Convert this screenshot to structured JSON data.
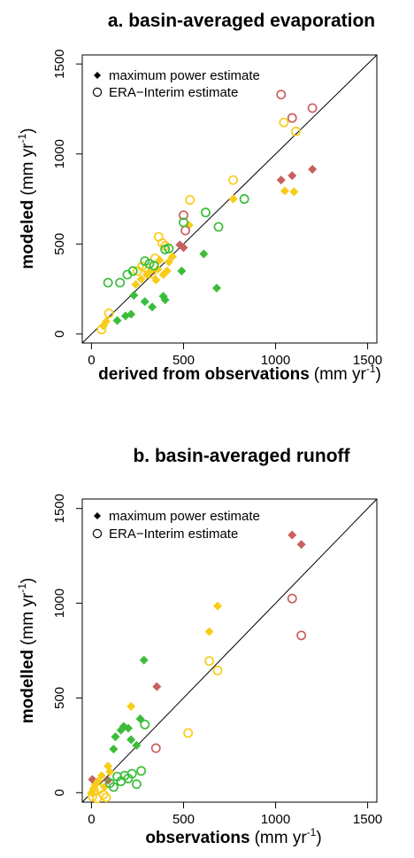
{
  "colors": {
    "red": "#c8615e",
    "yellow": "#f7cd1a",
    "green": "#3bbd3a",
    "black": "#000000"
  },
  "chart_data": [
    {
      "type": "scatter",
      "title": "a. basin-averaged evaporation",
      "xlabel_bold": "derived from observations",
      "xlabel_unit": "(mm yr",
      "xlabel_sup": "-1",
      "xlabel_close": ")",
      "ylabel_bold": "modeled",
      "ylabel_unit": "(mm yr",
      "ylabel_sup": "-1",
      "ylabel_close": ")",
      "xlim": [
        -50,
        1550
      ],
      "ylim": [
        -50,
        1550
      ],
      "xticks": [
        0,
        500,
        1000,
        1500
      ],
      "yticks": [
        0,
        500,
        1000,
        1500
      ],
      "one_to_one_line": true,
      "legend": {
        "position": "top-left",
        "entries": [
          {
            "symbol": "filled-diamond",
            "label": "maximum power estimate"
          },
          {
            "symbol": "open-circle",
            "label": "ERA−Interim estimate"
          }
        ]
      },
      "series": [
        {
          "marker": "diamond",
          "color": "red",
          "x": [
            480,
            500,
            1030,
            1090,
            1200
          ],
          "y": [
            495,
            480,
            855,
            880,
            915
          ]
        },
        {
          "marker": "diamond",
          "color": "yellow",
          "x": [
            65,
            80,
            240,
            270,
            300,
            320,
            350,
            360,
            370,
            390,
            410,
            420,
            440,
            530,
            770,
            1050,
            1100
          ],
          "y": [
            45,
            70,
            275,
            305,
            330,
            350,
            300,
            360,
            410,
            330,
            350,
            400,
            430,
            605,
            750,
            795,
            790
          ]
        },
        {
          "marker": "diamond",
          "color": "green",
          "x": [
            140,
            185,
            215,
            230,
            290,
            330,
            390,
            400,
            490,
            610,
            680
          ],
          "y": [
            75,
            100,
            110,
            215,
            180,
            150,
            210,
            190,
            350,
            445,
            255
          ]
        },
        {
          "marker": "circle",
          "color": "red",
          "x": [
            500,
            510,
            1030,
            1090,
            1200
          ],
          "y": [
            660,
            575,
            1330,
            1200,
            1255
          ]
        },
        {
          "marker": "circle",
          "color": "yellow",
          "x": [
            55,
            95,
            250,
            275,
            300,
            325,
            345,
            365,
            385,
            400,
            535,
            770,
            1045,
            1110
          ],
          "y": [
            25,
            115,
            350,
            375,
            365,
            335,
            420,
            540,
            505,
            490,
            745,
            855,
            1175,
            1125
          ]
        },
        {
          "marker": "circle",
          "color": "green",
          "x": [
            90,
            155,
            195,
            225,
            290,
            315,
            340,
            400,
            420,
            500,
            620,
            690,
            830
          ],
          "y": [
            285,
            285,
            330,
            350,
            405,
            390,
            380,
            470,
            475,
            620,
            675,
            595,
            750
          ]
        }
      ]
    },
    {
      "type": "scatter",
      "title": "b. basin-averaged runoff",
      "xlabel_bold": "observations",
      "xlabel_unit": "(mm yr",
      "xlabel_sup": "-1",
      "xlabel_close": ")",
      "ylabel_bold": "modelled",
      "ylabel_unit": "(mm yr",
      "ylabel_sup": "-1",
      "ylabel_close": ")",
      "xlim": [
        -50,
        1550
      ],
      "ylim": [
        -50,
        1550
      ],
      "xticks": [
        0,
        500,
        1000,
        1500
      ],
      "yticks": [
        0,
        500,
        1000,
        1500
      ],
      "one_to_one_line": true,
      "legend": {
        "position": "top-left",
        "entries": [
          {
            "symbol": "filled-diamond",
            "label": "maximum power estimate"
          },
          {
            "symbol": "open-circle",
            "label": "ERA−Interim estimate"
          }
        ]
      },
      "series": [
        {
          "marker": "diamond",
          "color": "red",
          "x": [
            5,
            90,
            355,
            1090,
            1140
          ],
          "y": [
            70,
            65,
            560,
            1360,
            1310
          ]
        },
        {
          "marker": "diamond",
          "color": "yellow",
          "x": [
            0,
            10,
            20,
            35,
            55,
            70,
            90,
            100,
            215,
            640,
            685
          ],
          "y": [
            0,
            20,
            40,
            60,
            90,
            30,
            140,
            110,
            455,
            850,
            985
          ]
        },
        {
          "marker": "diamond",
          "color": "green",
          "x": [
            120,
            130,
            160,
            175,
            200,
            215,
            245,
            265,
            285
          ],
          "y": [
            230,
            295,
            330,
            350,
            340,
            280,
            250,
            390,
            700
          ]
        },
        {
          "marker": "circle",
          "color": "red",
          "x": [
            350,
            1090,
            1140
          ],
          "y": [
            235,
            1025,
            830
          ]
        },
        {
          "marker": "circle",
          "color": "yellow",
          "x": [
            5,
            15,
            30,
            45,
            65,
            80,
            525,
            640,
            685
          ],
          "y": [
            -20,
            10,
            -30,
            20,
            -10,
            -25,
            315,
            695,
            645
          ]
        },
        {
          "marker": "circle",
          "color": "green",
          "x": [
            100,
            120,
            140,
            160,
            180,
            200,
            220,
            245,
            270,
            290
          ],
          "y": [
            50,
            30,
            85,
            60,
            90,
            75,
            100,
            45,
            115,
            360
          ]
        }
      ]
    }
  ]
}
